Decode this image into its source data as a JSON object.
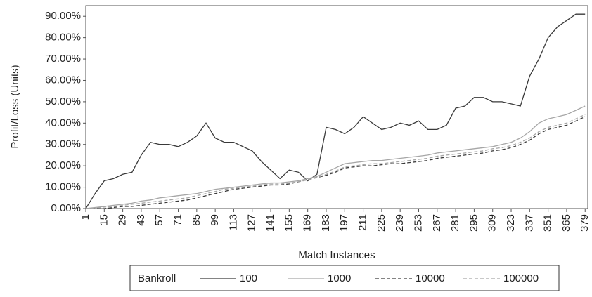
{
  "chart_data": {
    "type": "line",
    "y_label": "Profit/Loss (Units)",
    "x_label": "Match Instances",
    "legend_title": "Bankroll",
    "legend": "bottom",
    "xlim": [
      1,
      381
    ],
    "ylim": [
      0,
      95
    ],
    "xticks": [
      1,
      15,
      29,
      43,
      57,
      71,
      85,
      99,
      113,
      127,
      141,
      155,
      169,
      183,
      197,
      211,
      225,
      239,
      253,
      267,
      281,
      295,
      309,
      323,
      337,
      351,
      365,
      379
    ],
    "yticks": [
      {
        "value": 0,
        "label": "0.00%"
      },
      {
        "value": 10,
        "label": "10.00%"
      },
      {
        "value": 20,
        "label": "20.00%"
      },
      {
        "value": 30,
        "label": "30.00%"
      },
      {
        "value": 40,
        "label": "40.00%"
      },
      {
        "value": 50,
        "label": "50.00%"
      },
      {
        "value": 60,
        "label": "60.00%"
      },
      {
        "value": 70,
        "label": "70.00%"
      },
      {
        "value": 80,
        "label": "80.00%"
      },
      {
        "value": 90,
        "label": "90.00%"
      }
    ],
    "x": [
      1,
      8,
      15,
      22,
      29,
      36,
      43,
      50,
      57,
      64,
      71,
      78,
      85,
      92,
      99,
      106,
      113,
      120,
      127,
      134,
      141,
      148,
      155,
      162,
      169,
      176,
      183,
      190,
      197,
      204,
      211,
      218,
      225,
      232,
      239,
      246,
      253,
      260,
      267,
      274,
      281,
      288,
      295,
      302,
      309,
      316,
      323,
      330,
      337,
      344,
      351,
      358,
      365,
      372,
      379
    ],
    "series": [
      {
        "name": "100",
        "color": "#3a3a3a",
        "dash": "solid",
        "values": [
          0,
          7,
          13,
          14,
          16,
          17,
          25,
          31,
          30,
          30,
          29,
          31,
          34,
          40,
          33,
          31,
          31,
          29,
          27,
          22,
          18,
          14,
          18,
          17,
          13,
          16,
          38,
          37,
          35,
          38,
          43,
          40,
          37,
          38,
          40,
          39,
          41,
          37,
          37,
          39,
          47,
          48,
          52,
          52,
          50,
          50,
          49,
          48,
          62,
          70,
          80,
          85,
          88,
          91,
          91
        ]
      },
      {
        "name": "1000",
        "color": "#a6a6a6",
        "dash": "solid",
        "values": [
          0,
          0.5,
          1,
          1.5,
          2,
          2.5,
          3.5,
          4,
          5,
          5.5,
          6,
          6.5,
          7,
          8,
          9,
          9.5,
          10,
          10.5,
          11,
          11.5,
          12,
          12,
          12.5,
          13,
          14,
          15,
          17,
          19,
          21,
          21.5,
          22,
          22.5,
          22.5,
          23,
          23.5,
          24,
          24.5,
          25,
          26,
          26.5,
          27,
          27.5,
          28,
          28.5,
          29,
          30,
          31,
          33,
          36,
          40,
          42,
          43,
          44,
          46,
          48
        ]
      },
      {
        "name": "10000",
        "color": "#3a3a3a",
        "dash": "dashed",
        "values": [
          0,
          0,
          0,
          0.5,
          1,
          1,
          1.5,
          2,
          2.5,
          3,
          3.5,
          4,
          5,
          6,
          7,
          8,
          9,
          9.5,
          10,
          10.5,
          11,
          11,
          11.5,
          12.5,
          13.5,
          14.5,
          15.5,
          17,
          19,
          19.5,
          20,
          20,
          20.5,
          21,
          21,
          21.5,
          22,
          22.5,
          23.5,
          24,
          24.5,
          25,
          25.5,
          26,
          27,
          27.5,
          28.5,
          30,
          32,
          35,
          37,
          38,
          39,
          41,
          43
        ]
      },
      {
        "name": "100000",
        "color": "#a6a6a6",
        "dash": "dashed",
        "values": [
          0,
          0.3,
          0.7,
          1,
          1.5,
          2,
          2.5,
          3,
          3.5,
          4,
          4.5,
          5,
          6,
          7,
          8,
          9,
          9.5,
          10,
          10.5,
          11,
          11.5,
          11.5,
          12,
          12.5,
          13.5,
          14.5,
          16,
          17.5,
          19.5,
          20,
          20.5,
          21,
          21,
          21.5,
          22,
          22.5,
          23,
          23.5,
          24.5,
          25,
          25.5,
          26,
          26.5,
          27,
          28,
          28.5,
          29.5,
          31,
          33,
          36,
          38,
          39,
          40,
          42,
          44
        ]
      }
    ]
  }
}
